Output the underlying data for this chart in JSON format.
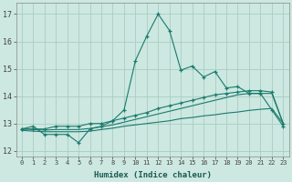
{
  "xlabel": "Humidex (Indice chaleur)",
  "background_color": "#cce8e0",
  "grid_color": "#aaccc4",
  "line_color": "#1a7a6e",
  "xlim": [
    -0.5,
    23.5
  ],
  "ylim": [
    11.8,
    17.4
  ],
  "yticks": [
    12,
    13,
    14,
    15,
    16,
    17
  ],
  "xticks": [
    0,
    1,
    2,
    3,
    4,
    5,
    6,
    7,
    8,
    9,
    10,
    11,
    12,
    13,
    14,
    15,
    16,
    17,
    18,
    19,
    20,
    21,
    22,
    23
  ],
  "line1_y": [
    12.8,
    12.9,
    12.6,
    12.6,
    12.6,
    12.3,
    12.8,
    12.9,
    13.1,
    13.5,
    15.3,
    16.2,
    17.0,
    16.4,
    14.95,
    15.1,
    14.7,
    14.9,
    14.3,
    14.35,
    14.1,
    14.1,
    13.5,
    12.9
  ],
  "line2_y": [
    12.8,
    12.8,
    12.8,
    12.9,
    12.9,
    12.9,
    13.0,
    13.0,
    13.1,
    13.2,
    13.3,
    13.4,
    13.55,
    13.65,
    13.75,
    13.85,
    13.95,
    14.05,
    14.1,
    14.15,
    14.2,
    14.2,
    14.15,
    13.0
  ],
  "line3_y": [
    12.8,
    12.78,
    12.76,
    12.78,
    12.78,
    12.78,
    12.82,
    12.88,
    12.95,
    13.05,
    13.15,
    13.25,
    13.35,
    13.45,
    13.55,
    13.65,
    13.75,
    13.85,
    13.95,
    14.05,
    14.1,
    14.1,
    14.1,
    13.0
  ],
  "line4_y": [
    12.75,
    12.72,
    12.7,
    12.7,
    12.7,
    12.7,
    12.72,
    12.78,
    12.83,
    12.9,
    12.95,
    13.0,
    13.05,
    13.1,
    13.18,
    13.22,
    13.28,
    13.32,
    13.38,
    13.42,
    13.48,
    13.52,
    13.55,
    13.0
  ]
}
